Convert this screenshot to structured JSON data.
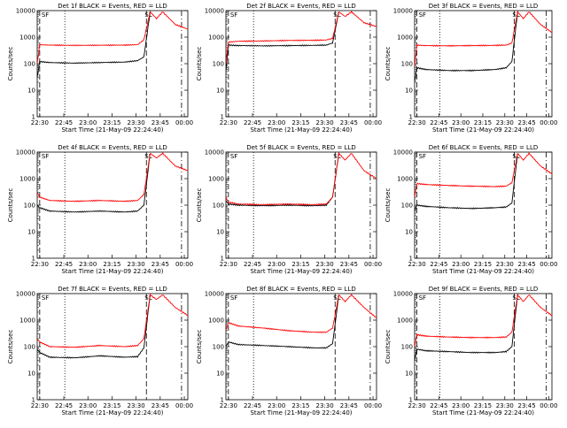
{
  "chart_data": [
    {
      "type": "line",
      "title": "Det 1f BLACK = Events, RED = LLD",
      "xlabel": "Start Time (21-May-09 22:24:40)",
      "ylabel": "Counts/sec",
      "ylim": [
        1,
        10000
      ],
      "yscale": "log",
      "xticks": [
        "22:30",
        "22:45",
        "23:00",
        "23:15",
        "23:30",
        "23:45",
        "00:00"
      ],
      "yticks": [
        "1",
        "10",
        "100",
        "1000",
        "10000"
      ],
      "marker_labels": [
        "SF",
        "SL"
      ],
      "series": [
        {
          "color": "#000000",
          "x": [
            0,
            0.02,
            0.1,
            0.3,
            0.5,
            0.7,
            0.8,
            0.85,
            0.9
          ],
          "y": [
            30,
            120,
            110,
            105,
            110,
            115,
            130,
            180,
            9000
          ]
        },
        {
          "color": "#ff0000",
          "x": [
            0,
            0.02,
            0.1,
            0.3,
            0.5,
            0.7,
            0.8,
            0.85,
            0.9,
            0.95,
            1.0,
            1.1,
            1.2
          ],
          "y": [
            100,
            520,
            500,
            490,
            495,
            500,
            520,
            800,
            9000,
            5000,
            9000,
            3000,
            2000
          ]
        }
      ]
    },
    {
      "type": "line",
      "title": "Det 2f BLACK = Events, RED = LLD",
      "xlabel": "Start Time (21-May-09 22:24:40)",
      "ylabel": "Counts/sec",
      "ylim": [
        1,
        10000
      ],
      "yscale": "log",
      "xticks": [
        "22:30",
        "22:45",
        "23:00",
        "23:15",
        "23:30",
        "23:45",
        "00:00"
      ],
      "yticks": [
        "1",
        "10",
        "100",
        "1000",
        "10000"
      ],
      "marker_labels": [
        "SF",
        "SL"
      ],
      "series": [
        {
          "color": "#000000",
          "x": [
            0,
            0.02,
            0.1,
            0.3,
            0.5,
            0.7,
            0.8,
            0.85,
            0.9
          ],
          "y": [
            50,
            500,
            480,
            470,
            480,
            490,
            500,
            600,
            9000
          ]
        },
        {
          "color": "#ff0000",
          "x": [
            0,
            0.02,
            0.1,
            0.3,
            0.5,
            0.7,
            0.8,
            0.85,
            0.9,
            0.95,
            1.0,
            1.1,
            1.2
          ],
          "y": [
            100,
            650,
            700,
            720,
            750,
            760,
            780,
            900,
            9000,
            6000,
            9000,
            3500,
            2500
          ]
        }
      ]
    },
    {
      "type": "line",
      "title": "Det 3f BLACK = Events, RED = LLD",
      "xlabel": "Start Time (21-May-09 22:24:40)",
      "ylabel": "Counts/sec",
      "ylim": [
        1,
        10000
      ],
      "yscale": "log",
      "xticks": [
        "22:30",
        "22:45",
        "23:00",
        "23:15",
        "23:30",
        "23:45",
        "00:00"
      ],
      "yticks": [
        "1",
        "10",
        "100",
        "1000",
        "10000"
      ],
      "marker_labels": [
        "SF",
        "SL"
      ],
      "series": [
        {
          "color": "#000000",
          "x": [
            0,
            0.02,
            0.1,
            0.3,
            0.5,
            0.7,
            0.8,
            0.85,
            0.9
          ],
          "y": [
            20,
            70,
            60,
            55,
            55,
            60,
            70,
            120,
            9000
          ]
        },
        {
          "color": "#ff0000",
          "x": [
            0,
            0.02,
            0.1,
            0.3,
            0.5,
            0.7,
            0.8,
            0.85,
            0.9,
            0.95,
            1.0,
            1.1,
            1.2
          ],
          "y": [
            80,
            500,
            480,
            470,
            480,
            490,
            500,
            600,
            9000,
            5000,
            9000,
            3000,
            1500
          ]
        }
      ]
    },
    {
      "type": "line",
      "title": "Det 4f BLACK = Events, RED = LLD",
      "xlabel": "Start Time (21-May-09 22:24:40)",
      "ylabel": "Counts/sec",
      "ylim": [
        1,
        10000
      ],
      "yscale": "log",
      "xticks": [
        "22:30",
        "22:45",
        "23:00",
        "23:15",
        "23:30",
        "23:45",
        "00:00"
      ],
      "yticks": [
        "1",
        "10",
        "100",
        "1000",
        "10000"
      ],
      "marker_labels": [
        "SF",
        "SL"
      ],
      "series": [
        {
          "color": "#000000",
          "x": [
            0,
            0.02,
            0.1,
            0.3,
            0.5,
            0.7,
            0.8,
            0.85,
            0.9
          ],
          "y": [
            100,
            80,
            60,
            55,
            60,
            55,
            60,
            100,
            9000
          ]
        },
        {
          "color": "#ff0000",
          "x": [
            0,
            0.02,
            0.1,
            0.3,
            0.5,
            0.7,
            0.8,
            0.85,
            0.9,
            0.95,
            1.0,
            1.1,
            1.2
          ],
          "y": [
            300,
            200,
            150,
            140,
            150,
            140,
            150,
            250,
            9000,
            6000,
            9000,
            3000,
            2000
          ]
        }
      ]
    },
    {
      "type": "line",
      "title": "Det 5f BLACK = Events, RED = LLD",
      "xlabel": "Start Time (21-May-09 22:24:40)",
      "ylabel": "Counts/sec",
      "ylim": [
        1,
        10000
      ],
      "yscale": "log",
      "xticks": [
        "22:30",
        "22:45",
        "23:00",
        "23:15",
        "23:30",
        "23:45",
        "00:00"
      ],
      "yticks": [
        "1",
        "10",
        "100",
        "1000",
        "10000"
      ],
      "marker_labels": [
        "SF",
        "SL"
      ],
      "series": [
        {
          "color": "#000000",
          "x": [
            0,
            0.02,
            0.1,
            0.3,
            0.5,
            0.7,
            0.8,
            0.85,
            0.9
          ],
          "y": [
            150,
            110,
            100,
            95,
            100,
            95,
            100,
            200,
            9000
          ]
        },
        {
          "color": "#ff0000",
          "x": [
            0,
            0.02,
            0.1,
            0.3,
            0.5,
            0.7,
            0.8,
            0.85,
            0.9,
            0.95,
            1.0,
            1.1,
            1.2
          ],
          "y": [
            200,
            130,
            110,
            105,
            110,
            105,
            110,
            200,
            9000,
            5000,
            9000,
            2000,
            1000
          ]
        }
      ]
    },
    {
      "type": "line",
      "title": "Det 6f BLACK = Events, RED = LLD",
      "xlabel": "Start Time (21-May-09 22:24:40)",
      "ylabel": "Counts/sec",
      "ylim": [
        1,
        10000
      ],
      "yscale": "log",
      "xticks": [
        "22:30",
        "22:45",
        "23:00",
        "23:15",
        "23:30",
        "23:45",
        "00:00"
      ],
      "yticks": [
        "1",
        "10",
        "100",
        "1000",
        "10000"
      ],
      "marker_labels": [
        "SF",
        "SL"
      ],
      "series": [
        {
          "color": "#000000",
          "x": [
            0,
            0.02,
            0.1,
            0.3,
            0.5,
            0.7,
            0.8,
            0.85,
            0.9
          ],
          "y": [
            60,
            100,
            90,
            80,
            75,
            80,
            85,
            120,
            9000
          ]
        },
        {
          "color": "#ff0000",
          "x": [
            0,
            0.02,
            0.1,
            0.3,
            0.5,
            0.7,
            0.8,
            0.85,
            0.9,
            0.95,
            1.0,
            1.1,
            1.2
          ],
          "y": [
            200,
            650,
            600,
            550,
            520,
            500,
            520,
            700,
            9000,
            5000,
            9000,
            3000,
            1500
          ]
        }
      ]
    },
    {
      "type": "line",
      "title": "Det 7f BLACK = Events, RED = LLD",
      "xlabel": "Start Time (21-May-09 22:24:40)",
      "ylabel": "Counts/sec",
      "ylim": [
        1,
        10000
      ],
      "yscale": "log",
      "xticks": [
        "22:30",
        "22:45",
        "23:00",
        "23:15",
        "23:30",
        "23:45",
        "00:00"
      ],
      "yticks": [
        "1",
        "10",
        "100",
        "1000",
        "10000"
      ],
      "marker_labels": [
        "SF",
        "SL"
      ],
      "series": [
        {
          "color": "#000000",
          "x": [
            0,
            0.02,
            0.1,
            0.3,
            0.5,
            0.7,
            0.8,
            0.85,
            0.9
          ],
          "y": [
            80,
            60,
            40,
            38,
            45,
            40,
            42,
            90,
            9000
          ]
        },
        {
          "color": "#ff0000",
          "x": [
            0,
            0.02,
            0.1,
            0.3,
            0.5,
            0.7,
            0.8,
            0.85,
            0.9,
            0.95,
            1.0,
            1.1,
            1.2
          ],
          "y": [
            200,
            150,
            100,
            95,
            110,
            100,
            110,
            200,
            9000,
            6000,
            9000,
            3000,
            1500
          ]
        }
      ]
    },
    {
      "type": "line",
      "title": "Det 8f BLACK = Events, RED = LLD",
      "xlabel": "Start Time (21-May-09 22:24:40)",
      "ylabel": "Counts/sec",
      "ylim": [
        1,
        10000
      ],
      "yscale": "log",
      "xticks": [
        "22:30",
        "22:45",
        "23:00",
        "23:15",
        "23:30",
        "23:45",
        "00:00"
      ],
      "yticks": [
        "1",
        "10",
        "100",
        "1000",
        "10000"
      ],
      "marker_labels": [
        "SF",
        "SL"
      ],
      "series": [
        {
          "color": "#000000",
          "x": [
            0,
            0.02,
            0.1,
            0.3,
            0.5,
            0.7,
            0.8,
            0.85,
            0.9
          ],
          "y": [
            100,
            150,
            120,
            110,
            100,
            90,
            90,
            130,
            9000
          ]
        },
        {
          "color": "#ff0000",
          "x": [
            0,
            0.02,
            0.1,
            0.3,
            0.5,
            0.7,
            0.8,
            0.85,
            0.9,
            0.95,
            1.0,
            1.1,
            1.2
          ],
          "y": [
            400,
            800,
            600,
            500,
            400,
            350,
            350,
            500,
            9000,
            5000,
            9000,
            3000,
            1200
          ]
        }
      ]
    },
    {
      "type": "line",
      "title": "Det 9f BLACK = Events, RED = LLD",
      "xlabel": "Start Time (21-May-09 22:24:40)",
      "ylabel": "Counts/sec",
      "ylim": [
        1,
        10000
      ],
      "yscale": "log",
      "xticks": [
        "22:30",
        "22:45",
        "23:00",
        "23:15",
        "23:30",
        "23:45",
        "00:00"
      ],
      "yticks": [
        "1",
        "10",
        "100",
        "1000",
        "10000"
      ],
      "marker_labels": [
        "SF",
        "SL"
      ],
      "series": [
        {
          "color": "#000000",
          "x": [
            0,
            0.02,
            0.1,
            0.3,
            0.5,
            0.7,
            0.8,
            0.85,
            0.9
          ],
          "y": [
            30,
            80,
            70,
            65,
            60,
            60,
            65,
            100,
            9000
          ]
        },
        {
          "color": "#ff0000",
          "x": [
            0,
            0.02,
            0.1,
            0.3,
            0.5,
            0.7,
            0.8,
            0.85,
            0.9,
            0.95,
            1.0,
            1.1,
            1.2
          ],
          "y": [
            100,
            280,
            250,
            230,
            220,
            220,
            230,
            350,
            9000,
            5000,
            9000,
            3000,
            1500
          ]
        }
      ]
    }
  ]
}
